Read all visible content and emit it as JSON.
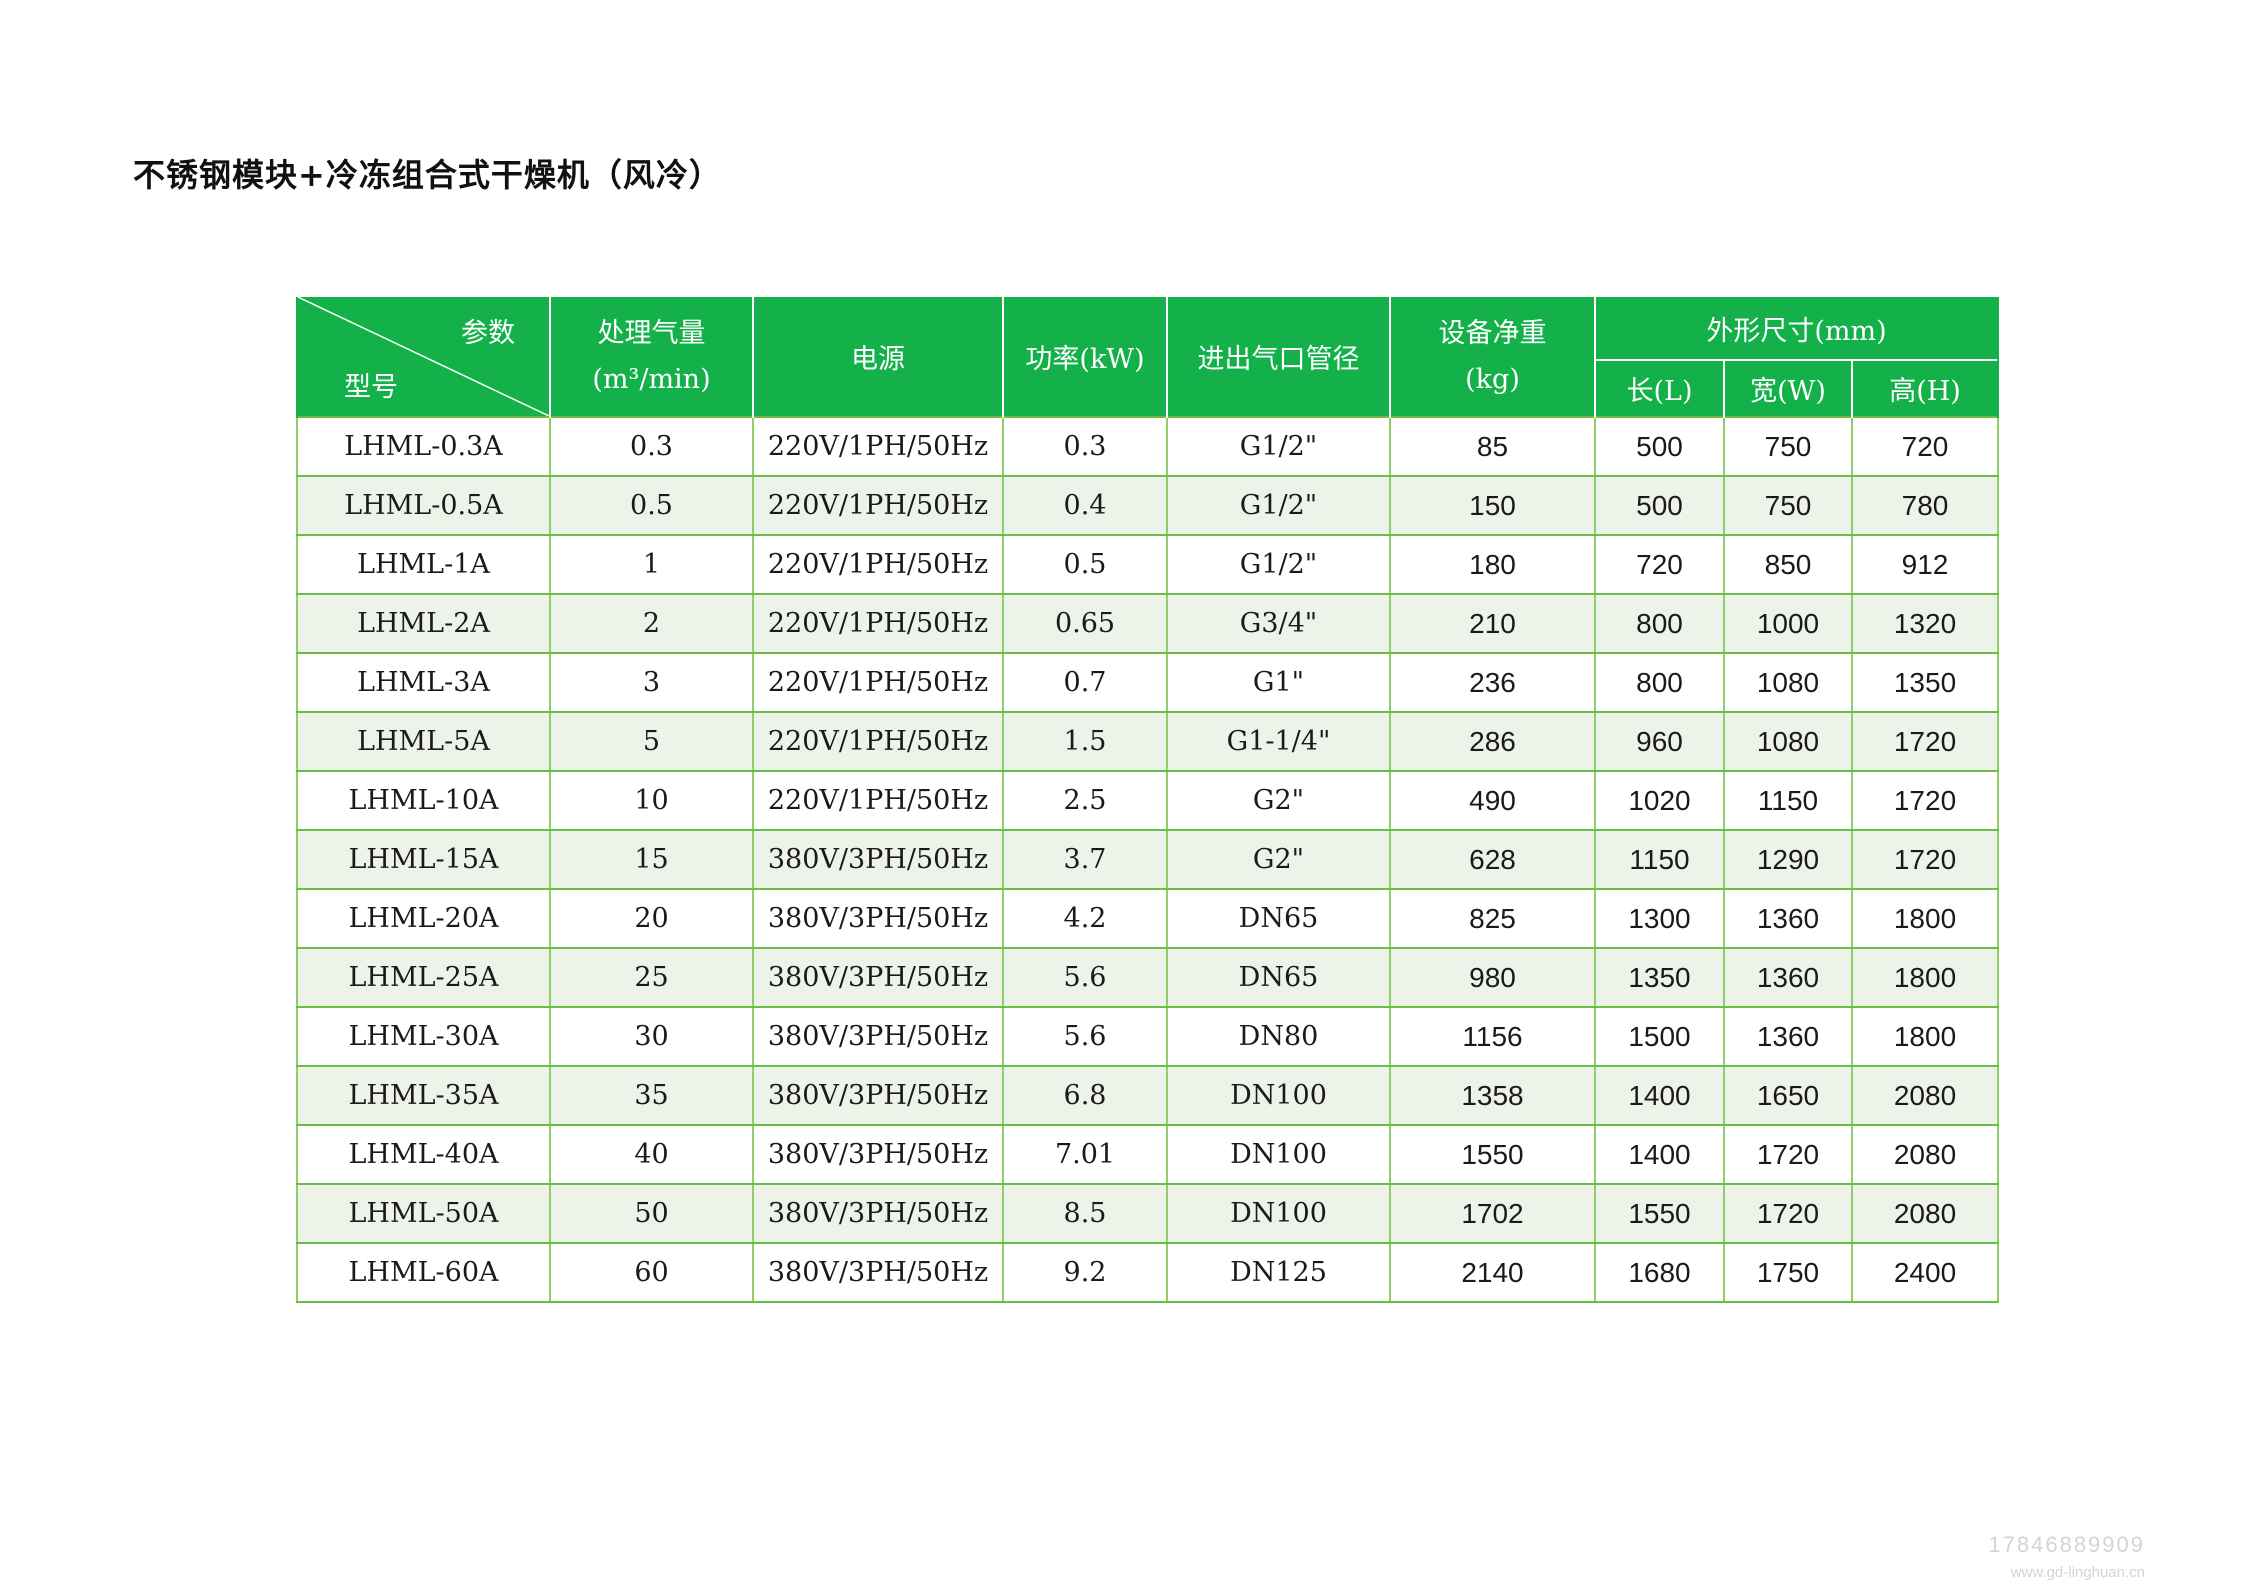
{
  "title": "不锈钢模块+冷冻组合式干燥机（风冷）",
  "table": {
    "corner_top": "参数",
    "corner_bottom": "型号",
    "columns": {
      "flow_line1": "处理气量",
      "flow_line2": "(m³/min)",
      "power_supply": "电源",
      "power": "功率(kW)",
      "pipe": "进出气口管径",
      "weight_line1": "设备净重",
      "weight_line2": "(kg)",
      "dimensions": "外形尺寸(mm)",
      "length": "长(L)",
      "width": "宽(W)",
      "height": "高(H)"
    },
    "rows": [
      {
        "model": "LHML-0.3A",
        "flow": "0.3",
        "supply": "220V/1PH/50Hz",
        "power": "0.3",
        "pipe": "G1/2\"",
        "weight": "85",
        "l": "500",
        "w": "750",
        "h": "720"
      },
      {
        "model": "LHML-0.5A",
        "flow": "0.5",
        "supply": "220V/1PH/50Hz",
        "power": "0.4",
        "pipe": "G1/2\"",
        "weight": "150",
        "l": "500",
        "w": "750",
        "h": "780"
      },
      {
        "model": "LHML-1A",
        "flow": "1",
        "supply": "220V/1PH/50Hz",
        "power": "0.5",
        "pipe": "G1/2\"",
        "weight": "180",
        "l": "720",
        "w": "850",
        "h": "912"
      },
      {
        "model": "LHML-2A",
        "flow": "2",
        "supply": "220V/1PH/50Hz",
        "power": "0.65",
        "pipe": "G3/4\"",
        "weight": "210",
        "l": "800",
        "w": "1000",
        "h": "1320"
      },
      {
        "model": "LHML-3A",
        "flow": "3",
        "supply": "220V/1PH/50Hz",
        "power": "0.7",
        "pipe": "G1\"",
        "weight": "236",
        "l": "800",
        "w": "1080",
        "h": "1350"
      },
      {
        "model": "LHML-5A",
        "flow": "5",
        "supply": "220V/1PH/50Hz",
        "power": "1.5",
        "pipe": "G1-1/4\"",
        "weight": "286",
        "l": "960",
        "w": "1080",
        "h": "1720"
      },
      {
        "model": "LHML-10A",
        "flow": "10",
        "supply": "220V/1PH/50Hz",
        "power": "2.5",
        "pipe": "G2\"",
        "weight": "490",
        "l": "1020",
        "w": "1150",
        "h": "1720"
      },
      {
        "model": "LHML-15A",
        "flow": "15",
        "supply": "380V/3PH/50Hz",
        "power": "3.7",
        "pipe": "G2\"",
        "weight": "628",
        "l": "1150",
        "w": "1290",
        "h": "1720"
      },
      {
        "model": "LHML-20A",
        "flow": "20",
        "supply": "380V/3PH/50Hz",
        "power": "4.2",
        "pipe": "DN65",
        "weight": "825",
        "l": "1300",
        "w": "1360",
        "h": "1800"
      },
      {
        "model": "LHML-25A",
        "flow": "25",
        "supply": "380V/3PH/50Hz",
        "power": "5.6",
        "pipe": "DN65",
        "weight": "980",
        "l": "1350",
        "w": "1360",
        "h": "1800"
      },
      {
        "model": "LHML-30A",
        "flow": "30",
        "supply": "380V/3PH/50Hz",
        "power": "5.6",
        "pipe": "DN80",
        "weight": "1156",
        "l": "1500",
        "w": "1360",
        "h": "1800"
      },
      {
        "model": "LHML-35A",
        "flow": "35",
        "supply": "380V/3PH/50Hz",
        "power": "6.8",
        "pipe": "DN100",
        "weight": "1358",
        "l": "1400",
        "w": "1650",
        "h": "2080"
      },
      {
        "model": "LHML-40A",
        "flow": "40",
        "supply": "380V/3PH/50Hz",
        "power": "7.01",
        "pipe": "DN100",
        "weight": "1550",
        "l": "1400",
        "w": "1720",
        "h": "2080"
      },
      {
        "model": "LHML-50A",
        "flow": "50",
        "supply": "380V/3PH/50Hz",
        "power": "8.5",
        "pipe": "DN100",
        "weight": "1702",
        "l": "1550",
        "w": "1720",
        "h": "2080"
      },
      {
        "model": "LHML-60A",
        "flow": "60",
        "supply": "380V/3PH/50Hz",
        "power": "9.2",
        "pipe": "DN125",
        "weight": "2140",
        "l": "1680",
        "w": "1750",
        "h": "2400"
      }
    ]
  },
  "watermark": {
    "phone": "17846889909",
    "url": "www.gd-linghuan.cn"
  },
  "colors": {
    "header_green": "#14b14b",
    "row_alt": "#eef3e9",
    "border_green": "#6cbd45"
  }
}
